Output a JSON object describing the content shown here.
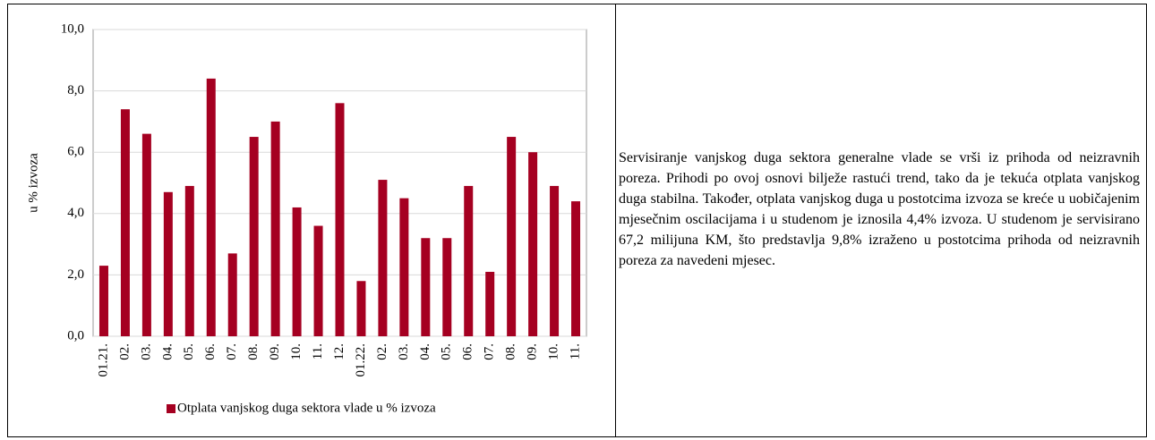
{
  "chart_data": {
    "type": "bar",
    "ylabel": "u % izvoza",
    "categories": [
      "01.21.",
      "02.",
      "03.",
      "04.",
      "05.",
      "06.",
      "07.",
      "08.",
      "09.",
      "10.",
      "11.",
      "12.",
      "01.22.",
      "02.",
      "03.",
      "04.",
      "05.",
      "06.",
      "07.",
      "08.",
      "09.",
      "10.",
      "11."
    ],
    "series": [
      {
        "name": "Otplata vanjskog duga sektora vlade u % izvoza",
        "color": "#a50021",
        "values": [
          2.3,
          7.4,
          6.6,
          4.7,
          4.9,
          8.4,
          2.7,
          6.5,
          7.0,
          4.2,
          3.6,
          7.6,
          1.8,
          5.1,
          4.5,
          3.2,
          3.2,
          4.9,
          2.1,
          6.5,
          6.0,
          4.9,
          4.4
        ]
      }
    ],
    "ylim": [
      0,
      10
    ],
    "yticks": [
      {
        "value": 0,
        "label": "0,0"
      },
      {
        "value": 2,
        "label": "2,0"
      },
      {
        "value": 4,
        "label": "4,0"
      },
      {
        "value": 6,
        "label": "6,0"
      },
      {
        "value": 8,
        "label": "8,0"
      },
      {
        "value": 10,
        "label": "10,0"
      }
    ],
    "grid": true,
    "legend": "bottom"
  },
  "text": "Servisiranje vanjskog duga sektora generalne vlade se vrši iz prihoda od neizravnih poreza. Prihodi po ovoj osnovi bilježe rastući trend, tako da je tekuća otplata vanjskog duga stabilna. Također, otplata vanjskog duga u postotcima izvoza se kreće u uobičajenim mjesečnim oscilacijama i u studenom je iznosila 4,4% izvoza. U studenom je servisirano 67,2 milijuna KM, što predstavlja 9,8% izraženo u postotcima prihoda od neizravnih poreza za navedeni mjesec."
}
